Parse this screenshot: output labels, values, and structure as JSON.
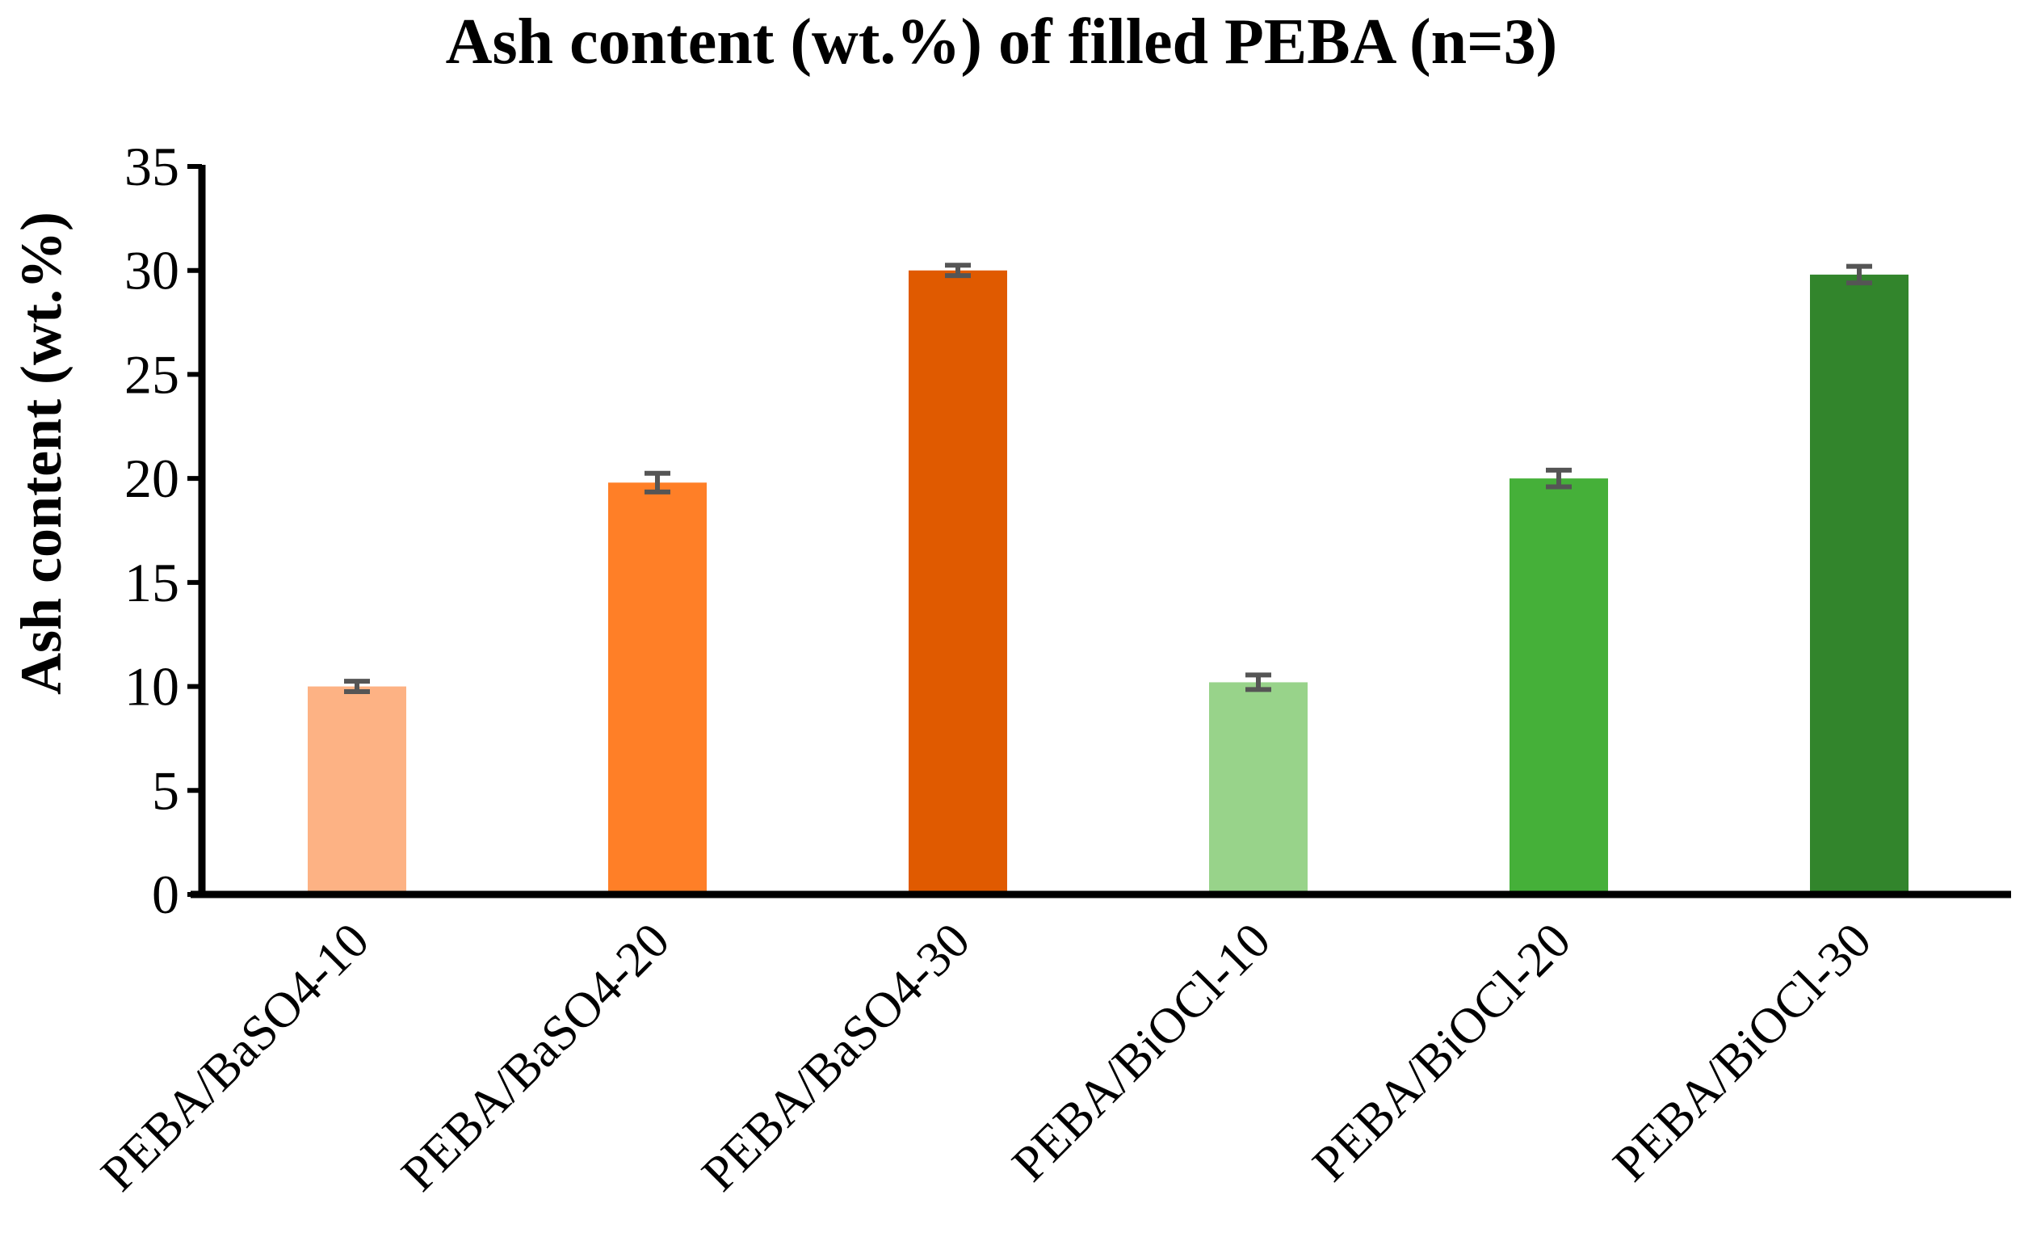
{
  "chart_data": {
    "type": "bar",
    "title": "Ash content (wt.%) of filled PEBA (n=3)",
    "xlabel": "",
    "ylabel": "Ash content (wt.%)",
    "ylim": [
      0,
      35
    ],
    "yticks": [
      "0",
      "5",
      "10",
      "15",
      "20",
      "25",
      "30",
      "35"
    ],
    "grid": false,
    "legend": "none",
    "categories": [
      "PEBA/BaSO4-10",
      "PEBA/BaSO4-20",
      "PEBA/BaSO4-30",
      "PEBA/BiOCl-10",
      "PEBA/BiOCl-20",
      "PEBA/BiOCl-30"
    ],
    "values": [
      10.0,
      19.8,
      30.0,
      10.2,
      20.0,
      29.8
    ],
    "errors": [
      0.25,
      0.45,
      0.25,
      0.35,
      0.4,
      0.4
    ],
    "bar_colors": [
      "#FDB284",
      "#FF7F27",
      "#E05A00",
      "#98D38A",
      "#45B039",
      "#32852C"
    ],
    "error_bar_color": "#555555",
    "axis_color": "#000000"
  }
}
